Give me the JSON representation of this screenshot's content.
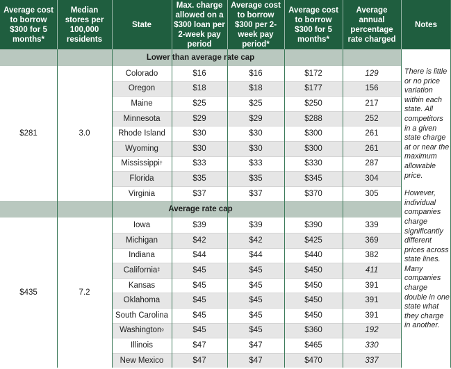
{
  "headers": [
    "Average cost to borrow $300 for 5 months*",
    "Median stores per 100,000 residents",
    "State",
    "Max. charge allowed on a $300 loan per 2-week pay period",
    "Average cost to borrow $300 per 2-week pay period*",
    "Average cost to borrow $300 for 5 months*",
    "Average annual percentage rate charged",
    "Notes"
  ],
  "sections": [
    {
      "title": "Lower than average rate cap",
      "avg_cost_5mo": "$281",
      "median_stores": "3.0",
      "rows": [
        {
          "state": "Colorado",
          "sup": "",
          "max_charge": "$16",
          "avg_2wk": "$16",
          "avg_5mo": "$172",
          "apr": "129",
          "apr_italic": true
        },
        {
          "state": "Oregon",
          "sup": "",
          "max_charge": "$18",
          "avg_2wk": "$18",
          "avg_5mo": "$177",
          "apr": "156",
          "apr_italic": false
        },
        {
          "state": "Maine",
          "sup": "",
          "max_charge": "$25",
          "avg_2wk": "$25",
          "avg_5mo": "$250",
          "apr": "217",
          "apr_italic": false
        },
        {
          "state": "Minnesota",
          "sup": "",
          "max_charge": "$29",
          "avg_2wk": "$29",
          "avg_5mo": "$288",
          "apr": "252",
          "apr_italic": false
        },
        {
          "state": "Rhode Island",
          "sup": "",
          "max_charge": "$30",
          "avg_2wk": "$30",
          "avg_5mo": "$300",
          "apr": "261",
          "apr_italic": false
        },
        {
          "state": "Wyoming",
          "sup": "",
          "max_charge": "$30",
          "avg_2wk": "$30",
          "avg_5mo": "$300",
          "apr": "261",
          "apr_italic": false
        },
        {
          "state": "Mississippi",
          "sup": "†",
          "max_charge": "$33",
          "avg_2wk": "$33",
          "avg_5mo": "$330",
          "apr": "287",
          "apr_italic": false
        },
        {
          "state": "Florida",
          "sup": "",
          "max_charge": "$35",
          "avg_2wk": "$35",
          "avg_5mo": "$345",
          "apr": "304",
          "apr_italic": false
        },
        {
          "state": "Virginia",
          "sup": "",
          "max_charge": "$37",
          "avg_2wk": "$37",
          "avg_5mo": "$370",
          "apr": "305",
          "apr_italic": false
        }
      ]
    },
    {
      "title": "Average rate cap",
      "avg_cost_5mo": "$435",
      "median_stores": "7.2",
      "rows": [
        {
          "state": "Iowa",
          "sup": "",
          "max_charge": "$39",
          "avg_2wk": "$39",
          "avg_5mo": "$390",
          "apr": "339",
          "apr_italic": false
        },
        {
          "state": "Michigan",
          "sup": "",
          "max_charge": "$42",
          "avg_2wk": "$42",
          "avg_5mo": "$425",
          "apr": "369",
          "apr_italic": false
        },
        {
          "state": "Indiana",
          "sup": "",
          "max_charge": "$44",
          "avg_2wk": "$44",
          "avg_5mo": "$440",
          "apr": "382",
          "apr_italic": false
        },
        {
          "state": "California",
          "sup": "‡",
          "max_charge": "$45",
          "avg_2wk": "$45",
          "avg_5mo": "$450",
          "apr": "411",
          "apr_italic": true
        },
        {
          "state": "Kansas",
          "sup": "",
          "max_charge": "$45",
          "avg_2wk": "$45",
          "avg_5mo": "$450",
          "apr": "391",
          "apr_italic": false
        },
        {
          "state": "Oklahoma",
          "sup": "",
          "max_charge": "$45",
          "avg_2wk": "$45",
          "avg_5mo": "$450",
          "apr": "391",
          "apr_italic": false
        },
        {
          "state": "South Carolina",
          "sup": "",
          "max_charge": "$45",
          "avg_2wk": "$45",
          "avg_5mo": "$450",
          "apr": "391",
          "apr_italic": false
        },
        {
          "state": "Washington",
          "sup": "◊",
          "max_charge": "$45",
          "avg_2wk": "$45",
          "avg_5mo": "$360",
          "apr": "192",
          "apr_italic": true
        },
        {
          "state": "Illinois",
          "sup": "",
          "max_charge": "$47",
          "avg_2wk": "$47",
          "avg_5mo": "$465",
          "apr": "330",
          "apr_italic": true
        },
        {
          "state": "New Mexico",
          "sup": "",
          "max_charge": "$47",
          "avg_2wk": "$47",
          "avg_5mo": "$470",
          "apr": "337",
          "apr_italic": true
        }
      ]
    }
  ],
  "notes": {
    "para1": "There is little or no price variation within each state. All competitors in a given state charge at or near the maximum allowable price.",
    "para2": "However, individual companies charge significantly different prices across state lines. Many companies charge double in one state what they charge in another."
  },
  "colors": {
    "header_bg": "#1f5e3f",
    "section_bg": "#b9c8bf",
    "shaded_row": "#e6e6e6"
  }
}
